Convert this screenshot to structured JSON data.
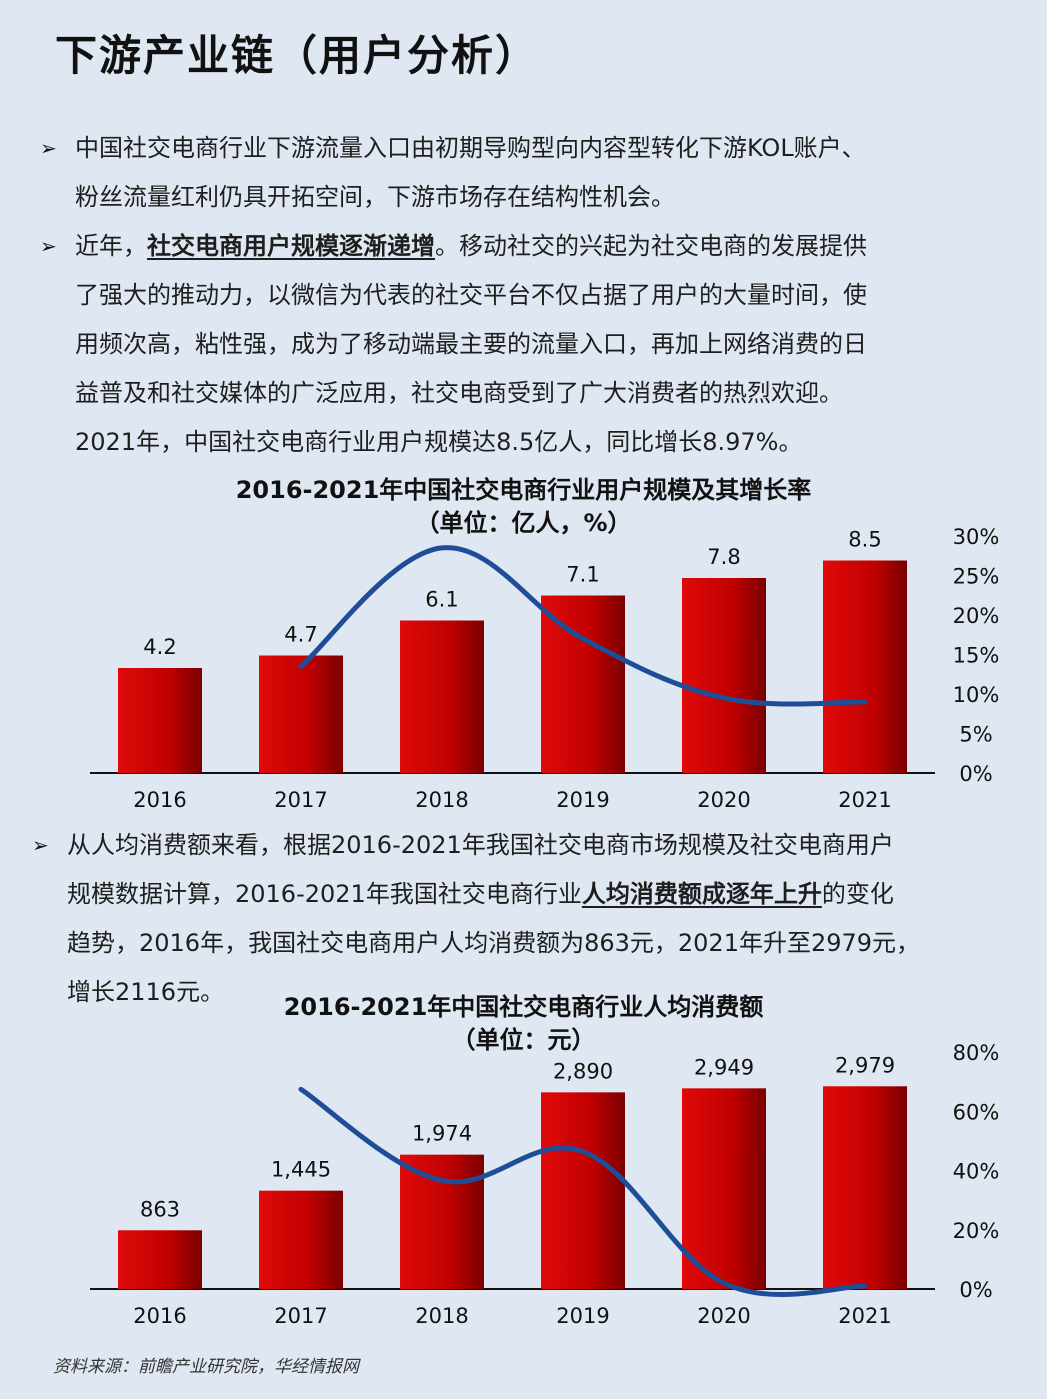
{
  "page": {
    "title": "下游产业链（用户分析）",
    "para1": {
      "line1": "中国社交电商行业下游流量入口由初期导购型向内容型转化下游KOL账户、",
      "line2": "粉丝流量红利仍具开拓空间，下游市场存在结构性机会。"
    },
    "para2": {
      "lead": "近年，",
      "emphasis": "社交电商用户规模逐渐递增",
      "line1_rest": "。移动社交的兴起为社交电商的发展提供",
      "line2": "了强大的推动力，以微信为代表的社交平台不仅占据了用户的大量时间，使",
      "line3": "用频次高，粘性强，成为了移动端最主要的流量入口，再加上网络消费的日",
      "line4": "益普及和社交媒体的广泛应用，社交电商受到了广大消费者的热烈欢迎。",
      "line5": "2021年，中国社交电商行业用户规模达8.5亿人，同比增长8.97%。"
    },
    "para3": {
      "line1": "从人均消费额来看，根据2016-2021年我国社交电商市场规模及社交电商用户",
      "line2_lead": "规模数据计算，2016-2021年我国社交电商行业",
      "line2_emphasis": "人均消费额成逐年上升",
      "line2_rest": "的变化",
      "line3": "趋势，2016年，我国社交电商用户人均消费额为863元，2021年升至2979元，",
      "line4": "增长2116元。"
    },
    "source": "资料来源：前瞻产业研究院，华经情报网"
  },
  "chart_data": [
    {
      "type": "bar",
      "title": "2016-2021年中国社交电商行业用户规模及其增长率",
      "subtitle": "（单位：亿人，%）",
      "categories": [
        "2016",
        "2017",
        "2018",
        "2019",
        "2020",
        "2021"
      ],
      "bar_series": {
        "values": [
          4.2,
          4.7,
          6.1,
          7.1,
          7.8,
          8.5
        ],
        "labels": [
          "4.2",
          "4.7",
          "6.1",
          "7.1",
          "7.8",
          "8.5"
        ],
        "color": "#c00000"
      },
      "line_series": {
        "values": [
          null,
          13.5,
          28.5,
          17.0,
          9.5,
          9.0
        ],
        "color": "#1f4e99"
      },
      "y_right": {
        "min": 0,
        "max": 30,
        "ticks": [
          "0%",
          "5%",
          "10%",
          "15%",
          "20%",
          "25%",
          "30%"
        ]
      },
      "bar_max": 9.0
    },
    {
      "type": "bar",
      "title": "2016-2021年中国社交电商行业人均消费额",
      "subtitle": "（单位：元）",
      "categories": [
        "2016",
        "2017",
        "2018",
        "2019",
        "2020",
        "2021"
      ],
      "bar_series": {
        "values": [
          863,
          1445,
          1974,
          2890,
          2949,
          2979
        ],
        "labels": [
          "863",
          "1,445",
          "1,974",
          "2,890",
          "2,949",
          "2,979"
        ],
        "color": "#c00000"
      },
      "line_series": {
        "values": [
          null,
          67.4,
          36.6,
          46.4,
          2.0,
          1.0
        ],
        "color": "#1f4e99"
      },
      "y_right": {
        "min": 0,
        "max": 80,
        "ticks": [
          "0%",
          "20%",
          "40%",
          "60%",
          "80%"
        ]
      },
      "bar_max": 3380
    }
  ]
}
